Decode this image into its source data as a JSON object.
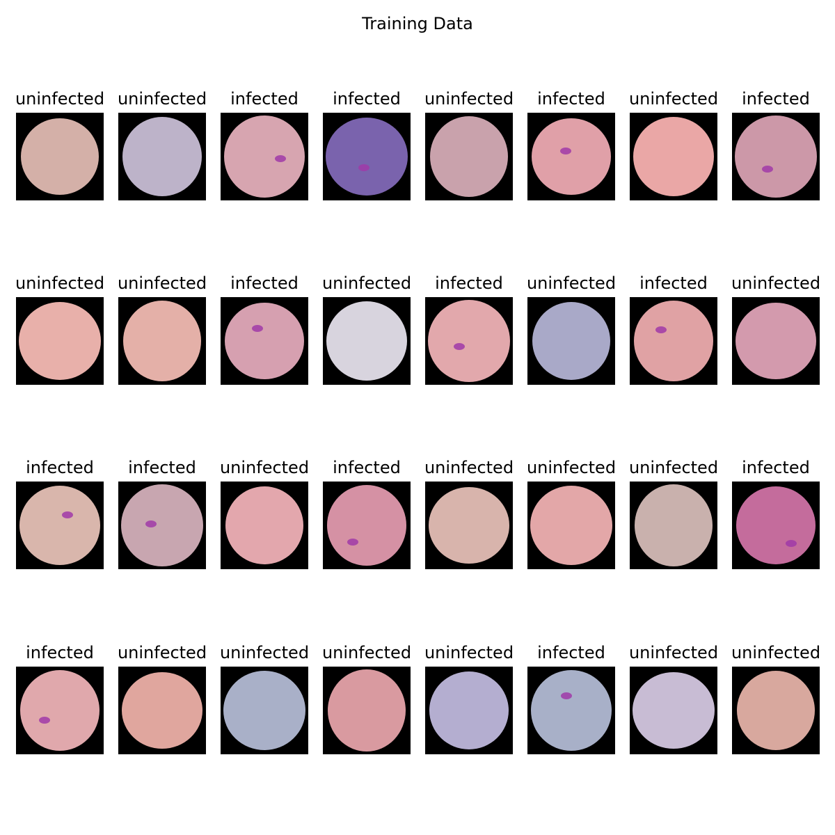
{
  "header": {
    "title": "Training Data"
  },
  "grid": {
    "rows": [
      [
        "uninfected",
        "uninfected",
        "infected",
        "infected",
        "uninfected",
        "infected",
        "uninfected",
        "infected"
      ],
      [
        "uninfected",
        "uninfected",
        "infected",
        "uninfected",
        "infected",
        "uninfected",
        "infected",
        "uninfected"
      ],
      [
        "infected",
        "infected",
        "uninfected",
        "infected",
        "uninfected",
        "uninfected",
        "uninfected",
        "infected"
      ],
      [
        "infected",
        "uninfected",
        "uninfected",
        "uninfected",
        "uninfected",
        "infected",
        "uninfected",
        "uninfected"
      ]
    ]
  }
}
